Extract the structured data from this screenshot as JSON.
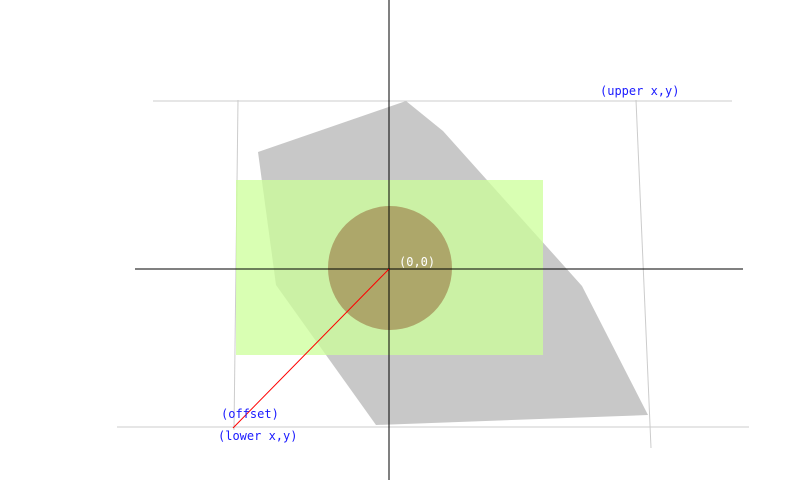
{
  "labels": {
    "origin": "(0,0)",
    "offset": "(offset)",
    "lower": "(lower x,y)",
    "upper": "(upper x,y)"
  },
  "colors": {
    "axis": "#000000",
    "frame": "#cccccc",
    "polygon": "#c8c8c8",
    "rect": "#ccff99",
    "circle": "#a89a5f",
    "offset_line": "#ff0000",
    "label_blue": "#1a1aff",
    "label_white": "#ffffff"
  }
}
